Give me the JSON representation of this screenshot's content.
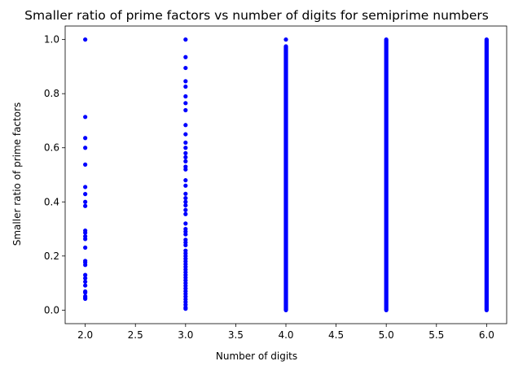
{
  "chart_data": {
    "type": "scatter",
    "title": "Smaller ratio of prime factors vs number of digits for semiprime numbers",
    "xlabel": "Number of digits",
    "ylabel": "Smaller ratio of prime factors",
    "xlim": [
      1.8,
      6.2
    ],
    "ylim": [
      -0.05,
      1.05
    ],
    "xticks": [
      2.0,
      2.5,
      3.0,
      3.5,
      4.0,
      4.5,
      5.0,
      5.5,
      6.0
    ],
    "xtick_labels": [
      "2.0",
      "2.5",
      "3.0",
      "3.5",
      "4.0",
      "4.5",
      "5.0",
      "5.5",
      "6.0"
    ],
    "yticks": [
      0.0,
      0.2,
      0.4,
      0.6,
      0.8,
      1.0
    ],
    "ytick_labels": [
      "0.0",
      "0.2",
      "0.4",
      "0.6",
      "0.8",
      "1.0"
    ],
    "marker_color": "#0000ff",
    "grid": false,
    "series": [
      {
        "points": [
          {
            "x": 2,
            "y": 1.0
          },
          {
            "x": 2,
            "y": 0.714
          },
          {
            "x": 2,
            "y": 0.636
          },
          {
            "x": 2,
            "y": 0.6
          },
          {
            "x": 2,
            "y": 0.538
          },
          {
            "x": 2,
            "y": 0.455
          },
          {
            "x": 2,
            "y": 0.429
          },
          {
            "x": 2,
            "y": 0.4
          },
          {
            "x": 2,
            "y": 0.385
          },
          {
            "x": 2,
            "y": 0.294
          },
          {
            "x": 2,
            "y": 0.286
          },
          {
            "x": 2,
            "y": 0.273
          },
          {
            "x": 2,
            "y": 0.263
          },
          {
            "x": 2,
            "y": 0.231
          },
          {
            "x": 2,
            "y": 0.182
          },
          {
            "x": 2,
            "y": 0.176
          },
          {
            "x": 2,
            "y": 0.167
          },
          {
            "x": 2,
            "y": 0.13
          },
          {
            "x": 2,
            "y": 0.118
          },
          {
            "x": 2,
            "y": 0.105
          },
          {
            "x": 2,
            "y": 0.091
          },
          {
            "x": 2,
            "y": 0.069
          },
          {
            "x": 2,
            "y": 0.065
          },
          {
            "x": 2,
            "y": 0.051
          },
          {
            "x": 2,
            "y": 0.046
          },
          {
            "x": 2,
            "y": 0.042
          },
          {
            "x": 3,
            "y": 1.0
          },
          {
            "x": 3,
            "y": 0.935
          },
          {
            "x": 3,
            "y": 0.895
          },
          {
            "x": 3,
            "y": 0.846
          },
          {
            "x": 3,
            "y": 0.826
          },
          {
            "x": 3,
            "y": 0.79
          },
          {
            "x": 3,
            "y": 0.765
          },
          {
            "x": 3,
            "y": 0.739
          },
          {
            "x": 3,
            "y": 0.684
          },
          {
            "x": 3,
            "y": 0.65
          },
          {
            "x": 3,
            "y": 0.619
          },
          {
            "x": 3,
            "y": 0.6
          },
          {
            "x": 3,
            "y": 0.58
          },
          {
            "x": 3,
            "y": 0.565
          },
          {
            "x": 3,
            "y": 0.55
          },
          {
            "x": 3,
            "y": 0.53
          },
          {
            "x": 3,
            "y": 0.52
          },
          {
            "x": 3,
            "y": 0.48
          },
          {
            "x": 3,
            "y": 0.46
          },
          {
            "x": 3,
            "y": 0.43
          },
          {
            "x": 3,
            "y": 0.414
          },
          {
            "x": 3,
            "y": 0.4
          },
          {
            "x": 3,
            "y": 0.387
          },
          {
            "x": 3,
            "y": 0.37
          },
          {
            "x": 3,
            "y": 0.355
          },
          {
            "x": 3,
            "y": 0.32
          },
          {
            "x": 3,
            "y": 0.3
          },
          {
            "x": 3,
            "y": 0.29
          },
          {
            "x": 3,
            "y": 0.28
          },
          {
            "x": 3,
            "y": 0.26
          },
          {
            "x": 3,
            "y": 0.25
          },
          {
            "x": 3,
            "y": 0.24
          },
          {
            "x": 3,
            "y": 0.22
          },
          {
            "x": 3,
            "y": 0.21
          },
          {
            "x": 3,
            "y": 0.2
          },
          {
            "x": 3,
            "y": 0.19
          },
          {
            "x": 3,
            "y": 0.18
          },
          {
            "x": 3,
            "y": 0.17
          },
          {
            "x": 3,
            "y": 0.16
          },
          {
            "x": 3,
            "y": 0.15
          },
          {
            "x": 3,
            "y": 0.14
          },
          {
            "x": 3,
            "y": 0.13
          },
          {
            "x": 3,
            "y": 0.12
          },
          {
            "x": 3,
            "y": 0.11
          },
          {
            "x": 3,
            "y": 0.1
          },
          {
            "x": 3,
            "y": 0.09
          },
          {
            "x": 3,
            "y": 0.08
          },
          {
            "x": 3,
            "y": 0.07
          },
          {
            "x": 3,
            "y": 0.06
          },
          {
            "x": 3,
            "y": 0.05
          },
          {
            "x": 3,
            "y": 0.04
          },
          {
            "x": 3,
            "y": 0.03
          },
          {
            "x": 3,
            "y": 0.02
          },
          {
            "x": 3,
            "y": 0.01
          },
          {
            "x": 3,
            "y": 0.005
          }
        ]
      }
    ],
    "dense_columns": [
      {
        "x": 4,
        "y_min": 0.0,
        "y_max": 0.975,
        "top_points": [
          1.0
        ]
      },
      {
        "x": 5,
        "y_min": 0.0,
        "y_max": 1.0,
        "top_points": []
      },
      {
        "x": 6,
        "y_min": 0.0,
        "y_max": 1.0,
        "top_points": []
      }
    ]
  }
}
